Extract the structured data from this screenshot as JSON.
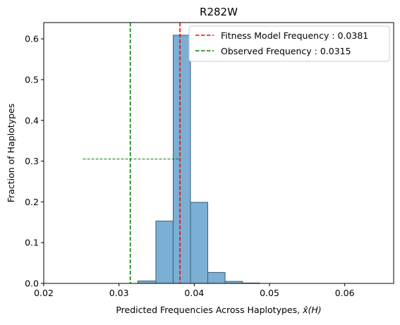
{
  "chart_data": {
    "type": "histogram",
    "title": "R282W",
    "xlabel": "Predicted Frequencies Across Haplotypes, ",
    "xlabel_math": "x̂(H)",
    "ylabel": "Fraction of Haplotypes",
    "xlim": [
      0.02,
      0.0665
    ],
    "ylim": [
      0.0,
      0.64
    ],
    "xticks": [
      "0.02",
      "0.03",
      "0.04",
      "0.05",
      "0.06"
    ],
    "xtick_values": [
      0.02,
      0.03,
      0.04,
      0.05,
      0.06
    ],
    "yticks": [
      "0.0",
      "0.1",
      "0.2",
      "0.3",
      "0.4",
      "0.5",
      "0.6"
    ],
    "ytick_values": [
      0.0,
      0.1,
      0.2,
      0.3,
      0.4,
      0.5,
      0.6
    ],
    "bins": [
      {
        "x0": 0.0325,
        "x1": 0.0349,
        "value": 0.006
      },
      {
        "x0": 0.0349,
        "x1": 0.0372,
        "value": 0.153
      },
      {
        "x0": 0.0372,
        "x1": 0.0395,
        "value": 0.609
      },
      {
        "x0": 0.0395,
        "x1": 0.0418,
        "value": 0.199
      },
      {
        "x0": 0.0418,
        "x1": 0.0441,
        "value": 0.027
      },
      {
        "x0": 0.0441,
        "x1": 0.0464,
        "value": 0.005
      },
      {
        "x0": 0.0464,
        "x1": 0.0487,
        "value": 0.001
      }
    ],
    "bar_color": "#7bafd4",
    "bar_edge": "#3f5f78",
    "vlines": [
      {
        "label": "Fitness Model Frequency : 0.0381",
        "x": 0.0381,
        "color": "#ff0000"
      },
      {
        "label": "Observed Frequency : 0.0315",
        "x": 0.0315,
        "color": "#008000"
      }
    ],
    "hline": {
      "y": 0.305,
      "x0": 0.0252,
      "x1": 0.0381,
      "color": "#008000"
    },
    "legend_position": "top-right",
    "grid": false
  }
}
